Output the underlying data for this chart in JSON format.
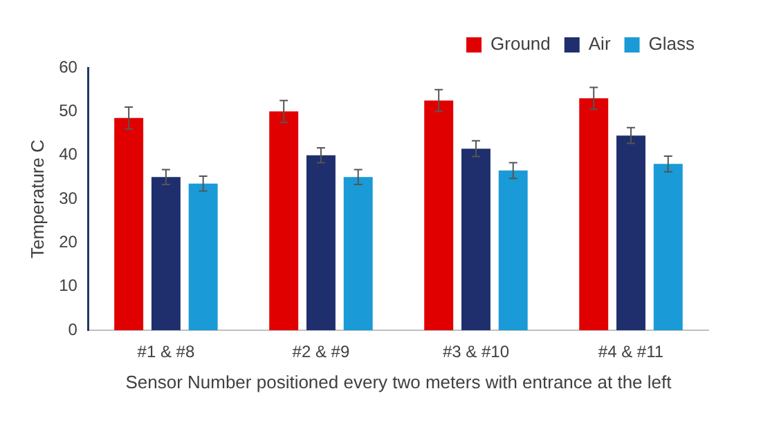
{
  "chart_data": {
    "type": "bar",
    "xlabel": "Sensor Number positioned every two meters with entrance at the left",
    "ylabel": "Temperature C",
    "categories": [
      "#1 & #8",
      "#2 & #9",
      "#3 & #10",
      "#4 & #11"
    ],
    "series": [
      {
        "name": "Ground",
        "color": "#e00000",
        "values": [
          48.5,
          50,
          52.5,
          53
        ],
        "errors": [
          2.5,
          2.5,
          2.5,
          2.5
        ]
      },
      {
        "name": "Air",
        "color": "#1f2f6e",
        "values": [
          35,
          40,
          41.5,
          44.5
        ],
        "errors": [
          1.7,
          1.7,
          1.8,
          1.8
        ]
      },
      {
        "name": "Glass",
        "color": "#1a9ad6",
        "values": [
          33.5,
          35,
          36.5,
          38
        ],
        "errors": [
          1.7,
          1.7,
          1.8,
          1.8
        ]
      }
    ],
    "ylim": [
      0,
      60
    ],
    "yticks": [
      0,
      10,
      20,
      30,
      40,
      50,
      60
    ],
    "grid": false,
    "legend": "top right"
  }
}
